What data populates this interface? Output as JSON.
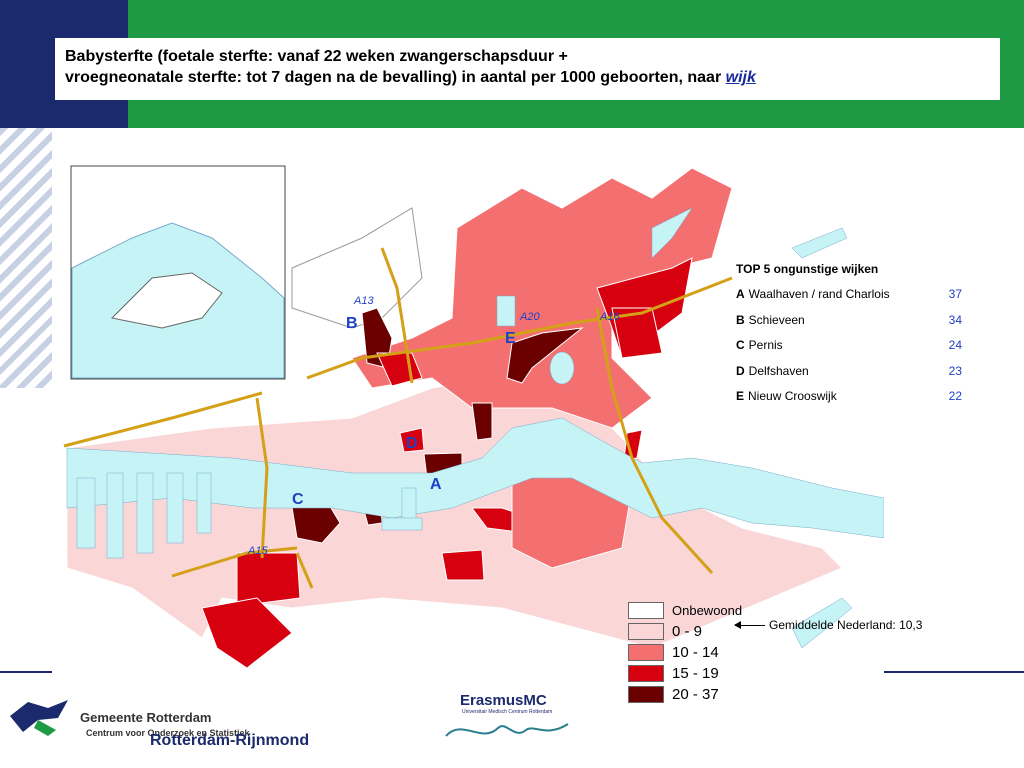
{
  "title": {
    "line1": "Babysterfte (foetale sterfte: vanaf 22 weken zwangerschapsduur +",
    "line2": "vroegneonatale sterfte: tot 7 dagen na de bevalling) in aantal per 1000 geboorten, naar",
    "link_word": "wijk"
  },
  "map": {
    "road_labels": [
      "A13",
      "A20",
      "A16",
      "A15"
    ],
    "district_markers": [
      "A",
      "B",
      "C",
      "D",
      "E"
    ]
  },
  "top5": {
    "heading": "TOP 5 ongunstige wijken",
    "items": [
      {
        "code": "A",
        "name": "Waalhaven / rand Charlois",
        "value": "37"
      },
      {
        "code": "B",
        "name": "Schieveen",
        "value": "34"
      },
      {
        "code": "C",
        "name": "Pernis",
        "value": "24"
      },
      {
        "code": "D",
        "name": "Delfshaven",
        "value": "23"
      },
      {
        "code": "E",
        "name": "Nieuw Crooswijk",
        "value": "22"
      }
    ]
  },
  "legend": {
    "items": [
      {
        "label": "Onbewoond",
        "color": "#ffffff"
      },
      {
        "label": "0 - 9",
        "color": "#fad6d6"
      },
      {
        "label": "10 - 14",
        "color": "#f47070"
      },
      {
        "label": "15 - 19",
        "color": "#d7000f"
      },
      {
        "label": "20 - 37",
        "color": "#6b0000"
      }
    ]
  },
  "average_note": "Gemiddelde Nederland: 10,3",
  "footer": {
    "gemeente": "Gemeente Rotterdam",
    "cos": "Centrum voor Onderzoek en Statistiek",
    "region": "Rotterdam-Rijnmond",
    "erasmus": "ErasmusMC",
    "erasmus_sub": "Universitair Medisch Centrum Rotterdam",
    "erasmus_signature": "Erasmus"
  },
  "colors": {
    "navy": "#1a2a6c",
    "green": "#1e9a45",
    "water": "#c6f4f6",
    "road": "#d4a017",
    "label_blue": "#1f40c8"
  }
}
